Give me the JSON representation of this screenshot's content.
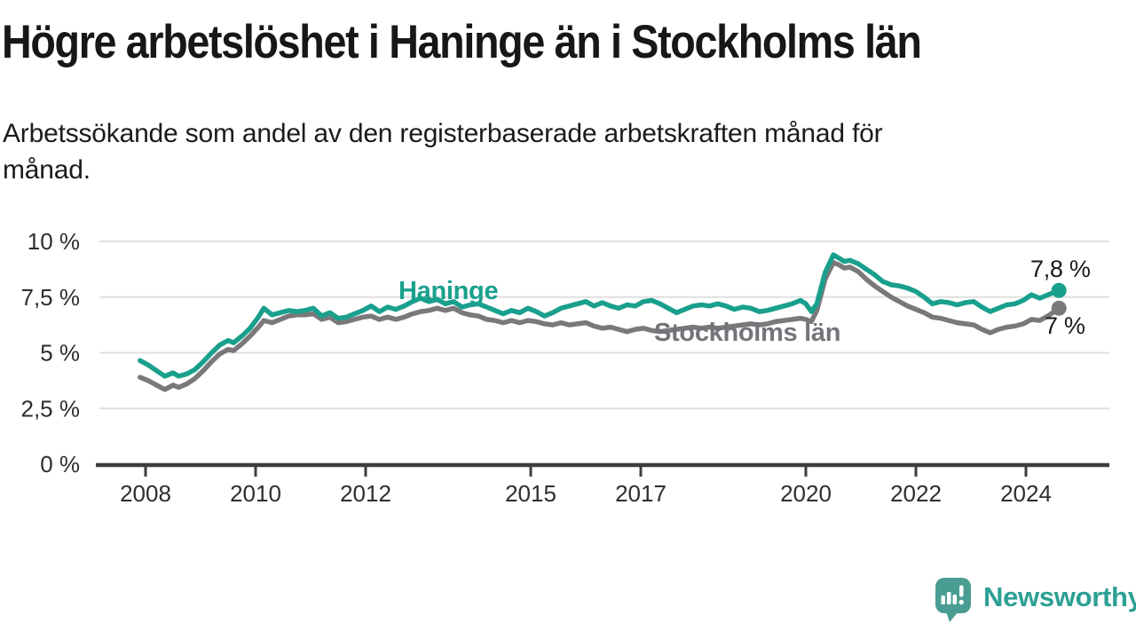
{
  "header": {
    "title": "Högre arbetslöshet i Haninge än i Stockholms län",
    "subtitle_line1": "Arbetssökande som andel av den registerbaserade arbetskraften månad för",
    "subtitle_line2": "månad."
  },
  "colors": {
    "accent_teal": "#19a08d",
    "series_gray": "#7b787b",
    "grid": "#e0e0e0",
    "axis": "#3d3d3d",
    "logo_teal": "#4a9d93",
    "brand_text_teal": "#2d9f94",
    "text": "#1a1a1a"
  },
  "footer": {
    "brand": "Newsworthy"
  },
  "chart_data": {
    "type": "line",
    "title": "Högre arbetslöshet i Haninge än i Stockholms län",
    "subtitle": "Arbetssökande som andel av den registerbaserade arbetskraften månad för månad.",
    "grid": "horizontal",
    "legend_position": "inline-labels",
    "x_axis": {
      "unit": "year",
      "range": [
        2007.8,
        2025.5
      ],
      "ticks": [
        2008,
        2010,
        2012,
        2015,
        2017,
        2020,
        2022,
        2024
      ],
      "tick_labels": [
        "2008",
        "2010",
        "2012",
        "2015",
        "2017",
        "2020",
        "2022",
        "2024"
      ]
    },
    "y_axis": {
      "unit": "percent",
      "range": [
        0,
        10.5
      ],
      "tick_values": [
        0,
        2.5,
        5,
        7.5,
        10
      ],
      "tick_labels": [
        "0 %",
        "2,5 %",
        "5 %",
        "7,5 %",
        "10 %"
      ]
    },
    "series": [
      {
        "name": "Haninge",
        "color": "#19a08d",
        "end_label": "7,8 %",
        "end_value": 7.8,
        "points": [
          [
            2007.9,
            4.65
          ],
          [
            2008.05,
            4.45
          ],
          [
            2008.2,
            4.2
          ],
          [
            2008.35,
            3.95
          ],
          [
            2008.5,
            4.1
          ],
          [
            2008.6,
            3.95
          ],
          [
            2008.75,
            4.05
          ],
          [
            2008.9,
            4.25
          ],
          [
            2009.05,
            4.6
          ],
          [
            2009.2,
            5.0
          ],
          [
            2009.35,
            5.35
          ],
          [
            2009.5,
            5.55
          ],
          [
            2009.6,
            5.45
          ],
          [
            2009.75,
            5.75
          ],
          [
            2009.9,
            6.1
          ],
          [
            2010.05,
            6.6
          ],
          [
            2010.15,
            7.0
          ],
          [
            2010.3,
            6.7
          ],
          [
            2010.45,
            6.8
          ],
          [
            2010.6,
            6.9
          ],
          [
            2010.75,
            6.85
          ],
          [
            2010.9,
            6.9
          ],
          [
            2011.05,
            7.0
          ],
          [
            2011.2,
            6.65
          ],
          [
            2011.35,
            6.8
          ],
          [
            2011.5,
            6.55
          ],
          [
            2011.65,
            6.6
          ],
          [
            2011.8,
            6.75
          ],
          [
            2011.95,
            6.9
          ],
          [
            2012.1,
            7.1
          ],
          [
            2012.25,
            6.85
          ],
          [
            2012.4,
            7.05
          ],
          [
            2012.55,
            6.95
          ],
          [
            2012.7,
            7.1
          ],
          [
            2012.85,
            7.3
          ],
          [
            2013.0,
            7.45
          ],
          [
            2013.15,
            7.3
          ],
          [
            2013.3,
            7.4
          ],
          [
            2013.45,
            7.2
          ],
          [
            2013.6,
            7.3
          ],
          [
            2013.75,
            7.05
          ],
          [
            2013.9,
            7.15
          ],
          [
            2014.05,
            7.2
          ],
          [
            2014.2,
            7.05
          ],
          [
            2014.35,
            6.9
          ],
          [
            2014.5,
            6.75
          ],
          [
            2014.65,
            6.9
          ],
          [
            2014.8,
            6.8
          ],
          [
            2014.95,
            7.0
          ],
          [
            2015.1,
            6.85
          ],
          [
            2015.25,
            6.65
          ],
          [
            2015.4,
            6.8
          ],
          [
            2015.55,
            7.0
          ],
          [
            2015.7,
            7.1
          ],
          [
            2015.85,
            7.2
          ],
          [
            2016.0,
            7.3
          ],
          [
            2016.15,
            7.1
          ],
          [
            2016.3,
            7.25
          ],
          [
            2016.45,
            7.1
          ],
          [
            2016.6,
            7.0
          ],
          [
            2016.75,
            7.15
          ],
          [
            2016.9,
            7.1
          ],
          [
            2017.05,
            7.3
          ],
          [
            2017.2,
            7.35
          ],
          [
            2017.35,
            7.2
          ],
          [
            2017.5,
            7.0
          ],
          [
            2017.65,
            6.8
          ],
          [
            2017.8,
            6.95
          ],
          [
            2017.95,
            7.1
          ],
          [
            2018.1,
            7.15
          ],
          [
            2018.25,
            7.1
          ],
          [
            2018.4,
            7.2
          ],
          [
            2018.55,
            7.1
          ],
          [
            2018.7,
            6.95
          ],
          [
            2018.85,
            7.05
          ],
          [
            2019.0,
            7.0
          ],
          [
            2019.15,
            6.85
          ],
          [
            2019.3,
            6.9
          ],
          [
            2019.45,
            7.0
          ],
          [
            2019.6,
            7.1
          ],
          [
            2019.75,
            7.2
          ],
          [
            2019.9,
            7.35
          ],
          [
            2020.0,
            7.2
          ],
          [
            2020.1,
            6.85
          ],
          [
            2020.2,
            7.2
          ],
          [
            2020.35,
            8.6
          ],
          [
            2020.5,
            9.4
          ],
          [
            2020.6,
            9.25
          ],
          [
            2020.7,
            9.1
          ],
          [
            2020.8,
            9.15
          ],
          [
            2020.95,
            9.0
          ],
          [
            2021.1,
            8.75
          ],
          [
            2021.25,
            8.5
          ],
          [
            2021.4,
            8.2
          ],
          [
            2021.55,
            8.05
          ],
          [
            2021.7,
            8.0
          ],
          [
            2021.85,
            7.9
          ],
          [
            2022.0,
            7.75
          ],
          [
            2022.15,
            7.5
          ],
          [
            2022.3,
            7.2
          ],
          [
            2022.45,
            7.3
          ],
          [
            2022.6,
            7.25
          ],
          [
            2022.75,
            7.15
          ],
          [
            2022.9,
            7.25
          ],
          [
            2023.05,
            7.3
          ],
          [
            2023.2,
            7.05
          ],
          [
            2023.35,
            6.85
          ],
          [
            2023.5,
            7.0
          ],
          [
            2023.65,
            7.15
          ],
          [
            2023.8,
            7.2
          ],
          [
            2023.95,
            7.35
          ],
          [
            2024.1,
            7.6
          ],
          [
            2024.25,
            7.45
          ],
          [
            2024.4,
            7.6
          ],
          [
            2024.6,
            7.8
          ]
        ]
      },
      {
        "name": "Stockholms län",
        "color": "#7b787b",
        "end_label": "7 %",
        "end_value": 7.0,
        "points": [
          [
            2007.9,
            3.9
          ],
          [
            2008.05,
            3.75
          ],
          [
            2008.2,
            3.55
          ],
          [
            2008.35,
            3.35
          ],
          [
            2008.5,
            3.55
          ],
          [
            2008.6,
            3.45
          ],
          [
            2008.75,
            3.6
          ],
          [
            2008.9,
            3.85
          ],
          [
            2009.05,
            4.2
          ],
          [
            2009.2,
            4.6
          ],
          [
            2009.35,
            4.95
          ],
          [
            2009.5,
            5.15
          ],
          [
            2009.6,
            5.1
          ],
          [
            2009.75,
            5.4
          ],
          [
            2009.9,
            5.75
          ],
          [
            2010.05,
            6.15
          ],
          [
            2010.15,
            6.45
          ],
          [
            2010.3,
            6.35
          ],
          [
            2010.45,
            6.5
          ],
          [
            2010.6,
            6.65
          ],
          [
            2010.75,
            6.7
          ],
          [
            2010.9,
            6.7
          ],
          [
            2011.05,
            6.75
          ],
          [
            2011.2,
            6.5
          ],
          [
            2011.35,
            6.6
          ],
          [
            2011.5,
            6.35
          ],
          [
            2011.65,
            6.4
          ],
          [
            2011.8,
            6.5
          ],
          [
            2011.95,
            6.6
          ],
          [
            2012.1,
            6.65
          ],
          [
            2012.25,
            6.5
          ],
          [
            2012.4,
            6.6
          ],
          [
            2012.55,
            6.5
          ],
          [
            2012.7,
            6.6
          ],
          [
            2012.85,
            6.75
          ],
          [
            2013.0,
            6.85
          ],
          [
            2013.15,
            6.9
          ],
          [
            2013.3,
            7.0
          ],
          [
            2013.45,
            6.9
          ],
          [
            2013.6,
            7.0
          ],
          [
            2013.75,
            6.8
          ],
          [
            2013.9,
            6.7
          ],
          [
            2014.05,
            6.65
          ],
          [
            2014.2,
            6.5
          ],
          [
            2014.35,
            6.45
          ],
          [
            2014.5,
            6.35
          ],
          [
            2014.65,
            6.45
          ],
          [
            2014.8,
            6.35
          ],
          [
            2014.95,
            6.45
          ],
          [
            2015.1,
            6.4
          ],
          [
            2015.25,
            6.3
          ],
          [
            2015.4,
            6.25
          ],
          [
            2015.55,
            6.35
          ],
          [
            2015.7,
            6.25
          ],
          [
            2015.85,
            6.3
          ],
          [
            2016.0,
            6.35
          ],
          [
            2016.15,
            6.2
          ],
          [
            2016.3,
            6.1
          ],
          [
            2016.45,
            6.15
          ],
          [
            2016.6,
            6.05
          ],
          [
            2016.75,
            5.95
          ],
          [
            2016.9,
            6.05
          ],
          [
            2017.05,
            6.1
          ],
          [
            2017.2,
            6.0
          ],
          [
            2017.35,
            5.95
          ],
          [
            2017.5,
            6.0
          ],
          [
            2017.65,
            6.05
          ],
          [
            2017.8,
            6.1
          ],
          [
            2017.95,
            6.15
          ],
          [
            2018.1,
            6.1
          ],
          [
            2018.25,
            6.15
          ],
          [
            2018.4,
            6.1
          ],
          [
            2018.55,
            6.15
          ],
          [
            2018.7,
            6.2
          ],
          [
            2018.85,
            6.25
          ],
          [
            2019.0,
            6.3
          ],
          [
            2019.15,
            6.25
          ],
          [
            2019.3,
            6.3
          ],
          [
            2019.45,
            6.4
          ],
          [
            2019.6,
            6.45
          ],
          [
            2019.75,
            6.5
          ],
          [
            2019.9,
            6.55
          ],
          [
            2020.0,
            6.5
          ],
          [
            2020.1,
            6.4
          ],
          [
            2020.2,
            6.9
          ],
          [
            2020.35,
            8.3
          ],
          [
            2020.5,
            9.05
          ],
          [
            2020.6,
            8.95
          ],
          [
            2020.7,
            8.8
          ],
          [
            2020.8,
            8.85
          ],
          [
            2020.95,
            8.65
          ],
          [
            2021.1,
            8.3
          ],
          [
            2021.25,
            8.0
          ],
          [
            2021.4,
            7.75
          ],
          [
            2021.55,
            7.5
          ],
          [
            2021.7,
            7.3
          ],
          [
            2021.85,
            7.1
          ],
          [
            2022.0,
            6.95
          ],
          [
            2022.15,
            6.8
          ],
          [
            2022.3,
            6.6
          ],
          [
            2022.45,
            6.55
          ],
          [
            2022.6,
            6.45
          ],
          [
            2022.75,
            6.35
          ],
          [
            2022.9,
            6.3
          ],
          [
            2023.05,
            6.25
          ],
          [
            2023.2,
            6.05
          ],
          [
            2023.35,
            5.9
          ],
          [
            2023.5,
            6.05
          ],
          [
            2023.65,
            6.15
          ],
          [
            2023.8,
            6.2
          ],
          [
            2023.95,
            6.3
          ],
          [
            2024.1,
            6.5
          ],
          [
            2024.25,
            6.45
          ],
          [
            2024.4,
            6.65
          ],
          [
            2024.6,
            7.0
          ]
        ]
      }
    ]
  }
}
